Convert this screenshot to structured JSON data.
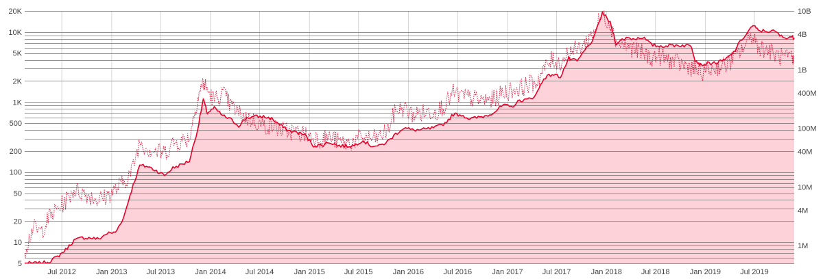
{
  "colors": {
    "background": "#ffffff",
    "area_fill": "#fdd3d9",
    "line_main": "#e8002a",
    "line_dotted": "#e8002a",
    "grid": "#6e6e6e",
    "vertical_grid": "#d4d4d4",
    "tick_text": "#444444"
  },
  "chart_data": {
    "type": "line",
    "title": "",
    "xlabel": "",
    "ylabel": "",
    "x_axis": {
      "type": "date",
      "range": [
        "2012-02-15",
        "2019-11-25"
      ],
      "ticks": [
        "2012-07-01",
        "2013-01-01",
        "2013-07-01",
        "2014-01-01",
        "2014-07-01",
        "2015-01-01",
        "2015-07-01",
        "2016-01-01",
        "2016-07-01",
        "2017-01-01",
        "2017-07-01",
        "2018-01-01",
        "2018-07-01",
        "2019-01-01",
        "2019-07-01"
      ],
      "tick_labels": [
        "Jul 2012",
        "Jan 2013",
        "Jul 2013",
        "Jan 2014",
        "Jul 2014",
        "Jan 2015",
        "Jul 2015",
        "Jan 2016",
        "Jul 2016",
        "Jan 2017",
        "Jul 2017",
        "Jan 2018",
        "Jul 2018",
        "Jan 2019",
        "Jul 2019"
      ]
    },
    "y_left": {
      "scale": "log",
      "range": [
        5,
        20000
      ],
      "ticks": [
        5,
        10,
        20,
        50,
        100,
        200,
        500,
        1000,
        2000,
        5000,
        10000,
        20000
      ],
      "tick_labels": [
        "5",
        "10",
        "20",
        "50",
        "100",
        "200",
        "500",
        "1K",
        "2K",
        "5K",
        "10K",
        "20K"
      ],
      "grid_values": [
        5,
        6,
        7,
        8,
        9,
        10,
        20,
        30,
        40,
        50,
        60,
        70,
        80,
        90,
        100,
        200,
        300,
        400,
        500,
        600,
        700,
        800,
        900,
        1000,
        2000,
        3000,
        4000,
        5000,
        6000,
        7000,
        8000,
        9000,
        10000,
        20000
      ]
    },
    "y_right": {
      "scale": "log",
      "range": [
        500000,
        10000000000
      ],
      "ticks": [
        1000000,
        4000000,
        10000000,
        40000000,
        100000000,
        400000000,
        1000000000,
        4000000000,
        10000000000
      ],
      "tick_labels": [
        "1M",
        "4M",
        "10M",
        "40M",
        "100M",
        "400M",
        "1B",
        "4B",
        "10B"
      ]
    },
    "grid": true,
    "legend": "none",
    "series": [
      {
        "axis": "left",
        "style": "solid",
        "points": [
          [
            "2012-02-15",
            5.0
          ],
          [
            "2012-03-15",
            5.0
          ],
          [
            "2012-04-15",
            5.0
          ],
          [
            "2012-05-15",
            5.3
          ],
          [
            "2012-06-15",
            6.2
          ],
          [
            "2012-07-15",
            7.8
          ],
          [
            "2012-08-15",
            10.6
          ],
          [
            "2012-09-15",
            11.6
          ],
          [
            "2012-10-15",
            11.5
          ],
          [
            "2012-11-15",
            11.1
          ],
          [
            "2012-12-15",
            13.4
          ],
          [
            "2013-01-15",
            13.7
          ],
          [
            "2013-02-15",
            23.0
          ],
          [
            "2013-03-15",
            55.0
          ],
          [
            "2013-04-15",
            125.0
          ],
          [
            "2013-05-15",
            120.0
          ],
          [
            "2013-06-15",
            105.0
          ],
          [
            "2013-07-15",
            90.0
          ],
          [
            "2013-08-15",
            115.0
          ],
          [
            "2013-09-15",
            128.0
          ],
          [
            "2013-10-15",
            145.0
          ],
          [
            "2013-11-15",
            420.0
          ],
          [
            "2013-12-05",
            1100.0
          ],
          [
            "2013-12-20",
            700.0
          ],
          [
            "2014-01-15",
            820.0
          ],
          [
            "2014-02-15",
            640.0
          ],
          [
            "2014-03-15",
            570.0
          ],
          [
            "2014-04-15",
            460.0
          ],
          [
            "2014-05-15",
            600.0
          ],
          [
            "2014-06-15",
            620.0
          ],
          [
            "2014-07-15",
            620.0
          ],
          [
            "2014-08-15",
            580.0
          ],
          [
            "2014-09-15",
            470.0
          ],
          [
            "2014-10-15",
            390.0
          ],
          [
            "2014-11-15",
            370.0
          ],
          [
            "2014-12-15",
            340.0
          ],
          [
            "2015-01-15",
            240.0
          ],
          [
            "2015-02-15",
            240.0
          ],
          [
            "2015-03-15",
            270.0
          ],
          [
            "2015-04-15",
            240.0
          ],
          [
            "2015-05-15",
            235.0
          ],
          [
            "2015-06-15",
            240.0
          ],
          [
            "2015-07-15",
            285.0
          ],
          [
            "2015-08-15",
            240.0
          ],
          [
            "2015-09-15",
            235.0
          ],
          [
            "2015-10-15",
            270.0
          ],
          [
            "2015-11-15",
            350.0
          ],
          [
            "2015-12-15",
            430.0
          ],
          [
            "2016-01-15",
            400.0
          ],
          [
            "2016-02-15",
            400.0
          ],
          [
            "2016-03-15",
            415.0
          ],
          [
            "2016-04-15",
            440.0
          ],
          [
            "2016-05-15",
            500.0
          ],
          [
            "2016-06-15",
            670.0
          ],
          [
            "2016-07-15",
            660.0
          ],
          [
            "2016-08-15",
            575.0
          ],
          [
            "2016-09-15",
            605.0
          ],
          [
            "2016-10-15",
            640.0
          ],
          [
            "2016-11-15",
            730.0
          ],
          [
            "2016-12-15",
            900.0
          ],
          [
            "2017-01-15",
            850.0
          ],
          [
            "2017-02-15",
            1050.0
          ],
          [
            "2017-03-15",
            1080.0
          ],
          [
            "2017-04-15",
            1250.0
          ],
          [
            "2017-05-15",
            2200.0
          ],
          [
            "2017-06-15",
            2500.0
          ],
          [
            "2017-07-15",
            2300.0
          ],
          [
            "2017-08-15",
            4200.0
          ],
          [
            "2017-09-15",
            3800.0
          ],
          [
            "2017-10-15",
            5600.0
          ],
          [
            "2017-11-15",
            8000.0
          ],
          [
            "2017-12-17",
            19000.0
          ],
          [
            "2018-01-15",
            13500.0
          ],
          [
            "2018-02-06",
            6900.0
          ],
          [
            "2018-03-15",
            8300.0
          ],
          [
            "2018-04-15",
            8000.0
          ],
          [
            "2018-05-15",
            8500.0
          ],
          [
            "2018-06-15",
            6600.0
          ],
          [
            "2018-07-15",
            6300.0
          ],
          [
            "2018-08-15",
            6400.0
          ],
          [
            "2018-09-15",
            6500.0
          ],
          [
            "2018-10-15",
            6450.0
          ],
          [
            "2018-11-10",
            6400.0
          ],
          [
            "2018-11-25",
            4000.0
          ],
          [
            "2018-12-15",
            3400.0
          ],
          [
            "2019-01-15",
            3600.0
          ],
          [
            "2019-02-15",
            3650.0
          ],
          [
            "2019-03-15",
            4000.0
          ],
          [
            "2019-04-15",
            5100.0
          ],
          [
            "2019-05-15",
            7800.0
          ],
          [
            "2019-06-26",
            12500.0
          ],
          [
            "2019-07-15",
            10500.0
          ],
          [
            "2019-08-15",
            10300.0
          ],
          [
            "2019-09-15",
            10200.0
          ],
          [
            "2019-10-15",
            8300.0
          ],
          [
            "2019-11-15",
            8600.0
          ],
          [
            "2019-11-25",
            8200.0
          ]
        ]
      },
      {
        "axis": "right",
        "style": "dotted",
        "points": [
          [
            "2012-02-15",
            800000
          ],
          [
            "2012-03-15",
            2000000
          ],
          [
            "2012-04-15",
            1700000
          ],
          [
            "2012-05-15",
            3000000
          ],
          [
            "2012-06-15",
            4200000
          ],
          [
            "2012-07-15",
            5800000
          ],
          [
            "2012-08-15",
            9000000
          ],
          [
            "2012-09-15",
            8000000
          ],
          [
            "2012-10-15",
            7000000
          ],
          [
            "2012-11-15",
            6000000
          ],
          [
            "2012-12-15",
            7000000
          ],
          [
            "2013-01-15",
            9000000
          ],
          [
            "2013-02-15",
            12000000
          ],
          [
            "2013-03-15",
            18000000
          ],
          [
            "2013-04-15",
            60000000
          ],
          [
            "2013-05-15",
            45000000
          ],
          [
            "2013-06-15",
            40000000
          ],
          [
            "2013-07-15",
            38000000
          ],
          [
            "2013-08-15",
            55000000
          ],
          [
            "2013-09-15",
            60000000
          ],
          [
            "2013-10-15",
            70000000
          ],
          [
            "2013-11-15",
            350000000
          ],
          [
            "2013-12-05",
            600000000
          ],
          [
            "2013-12-20",
            450000000
          ],
          [
            "2014-01-15",
            300000000
          ],
          [
            "2014-02-15",
            400000000
          ],
          [
            "2014-03-15",
            250000000
          ],
          [
            "2014-04-15",
            180000000
          ],
          [
            "2014-05-15",
            150000000
          ],
          [
            "2014-06-15",
            130000000
          ],
          [
            "2014-07-15",
            110000000
          ],
          [
            "2014-08-15",
            110000000
          ],
          [
            "2014-09-15",
            95000000
          ],
          [
            "2014-10-15",
            90000000
          ],
          [
            "2014-11-15",
            85000000
          ],
          [
            "2014-12-15",
            80000000
          ],
          [
            "2015-01-15",
            70000000
          ],
          [
            "2015-02-15",
            65000000
          ],
          [
            "2015-03-15",
            70000000
          ],
          [
            "2015-04-15",
            60000000
          ],
          [
            "2015-05-15",
            55000000
          ],
          [
            "2015-06-15",
            60000000
          ],
          [
            "2015-07-15",
            70000000
          ],
          [
            "2015-08-15",
            65000000
          ],
          [
            "2015-09-15",
            70000000
          ],
          [
            "2015-10-15",
            90000000
          ],
          [
            "2015-11-15",
            200000000
          ],
          [
            "2015-12-15",
            220000000
          ],
          [
            "2016-01-15",
            170000000
          ],
          [
            "2016-02-15",
            180000000
          ],
          [
            "2016-03-15",
            190000000
          ],
          [
            "2016-04-15",
            200000000
          ],
          [
            "2016-05-15",
            250000000
          ],
          [
            "2016-06-15",
            400000000
          ],
          [
            "2016-07-15",
            350000000
          ],
          [
            "2016-08-15",
            330000000
          ],
          [
            "2016-09-15",
            300000000
          ],
          [
            "2016-10-15",
            300000000
          ],
          [
            "2016-11-15",
            320000000
          ],
          [
            "2016-12-15",
            400000000
          ],
          [
            "2017-01-15",
            450000000
          ],
          [
            "2017-02-15",
            480000000
          ],
          [
            "2017-03-15",
            550000000
          ],
          [
            "2017-04-15",
            600000000
          ],
          [
            "2017-05-15",
            1000000000
          ],
          [
            "2017-06-15",
            1500000000
          ],
          [
            "2017-07-15",
            1300000000
          ],
          [
            "2017-08-15",
            2000000000
          ],
          [
            "2017-09-15",
            2200000000
          ],
          [
            "2017-10-15",
            2800000000
          ],
          [
            "2017-11-15",
            4500000000
          ],
          [
            "2017-12-17",
            9000000000
          ],
          [
            "2018-01-15",
            6000000000
          ],
          [
            "2018-02-06",
            3000000000
          ],
          [
            "2018-03-15",
            2500000000
          ],
          [
            "2018-04-15",
            2200000000
          ],
          [
            "2018-05-15",
            1900000000
          ],
          [
            "2018-06-15",
            1600000000
          ],
          [
            "2018-07-15",
            1700000000
          ],
          [
            "2018-08-15",
            1500000000
          ],
          [
            "2018-09-15",
            1300000000
          ],
          [
            "2018-10-15",
            1200000000
          ],
          [
            "2018-11-10",
            1100000000
          ],
          [
            "2018-11-25",
            1000000000
          ],
          [
            "2018-12-15",
            900000000
          ],
          [
            "2019-01-15",
            1000000000
          ],
          [
            "2019-02-15",
            1100000000
          ],
          [
            "2019-03-15",
            1200000000
          ],
          [
            "2019-04-15",
            1500000000
          ],
          [
            "2019-05-15",
            2200000000
          ],
          [
            "2019-06-26",
            4000000000
          ],
          [
            "2019-07-15",
            2500000000
          ],
          [
            "2019-08-15",
            2200000000
          ],
          [
            "2019-09-15",
            1800000000
          ],
          [
            "2019-10-15",
            1600000000
          ],
          [
            "2019-11-15",
            1500000000
          ],
          [
            "2019-11-25",
            1300000000
          ]
        ]
      }
    ]
  }
}
